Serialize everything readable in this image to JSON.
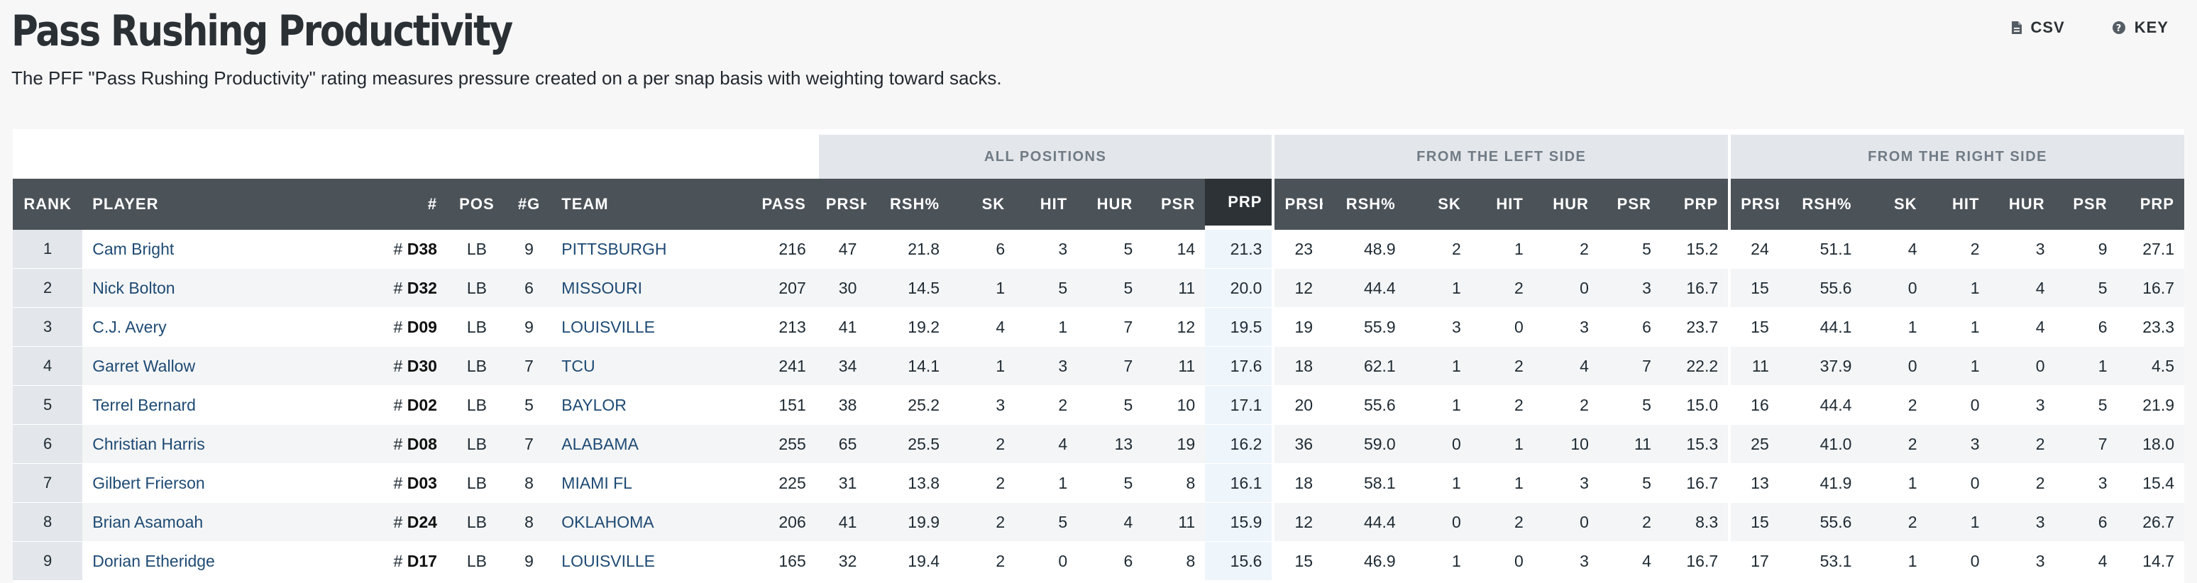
{
  "header": {
    "title": "Pass Rushing Productivity",
    "subtitle": "The PFF \"Pass Rushing Productivity\" rating measures pressure created on a per snap basis with weighting toward sacks.",
    "csv_label": "CSV",
    "key_label": "KEY",
    "csv_icon": "file-icon",
    "key_icon": "help-circle-icon"
  },
  "groups": {
    "all": "ALL POSITIONS",
    "left": "FROM THE LEFT SIDE",
    "right": "FROM THE RIGHT SIDE"
  },
  "columns": {
    "rank": "RANK",
    "player": "PLAYER",
    "jersey": "#",
    "pos": "POS",
    "games": "#G",
    "team": "TEAM",
    "pass": "PASS",
    "prsh": "PRSH",
    "rsh_pct": "RSH%",
    "sk": "SK",
    "hit": "HIT",
    "hur": "HUR",
    "psr": "PSR",
    "prp": "PRP"
  },
  "jersey_prefix": "# ",
  "colors": {
    "header_bg": "#4b5258",
    "sorted_header_bg": "#2d3237",
    "group_bg": "#e3e6ea",
    "link": "#1e4a74",
    "sorted_cell_bg": "#eef5fb"
  },
  "rows": [
    {
      "rank": "1",
      "player": "Cam Bright",
      "jersey": "D38",
      "pos": "LB",
      "games": "9",
      "team": "PITTSBURGH",
      "pass": "216",
      "all": {
        "prsh": "47",
        "rsh": "21.8",
        "sk": "6",
        "hit": "3",
        "hur": "5",
        "psr": "14",
        "prp": "21.3"
      },
      "left": {
        "prsh": "23",
        "rsh": "48.9",
        "sk": "2",
        "hit": "1",
        "hur": "2",
        "psr": "5",
        "prp": "15.2"
      },
      "right": {
        "prsh": "24",
        "rsh": "51.1",
        "sk": "4",
        "hit": "2",
        "hur": "3",
        "psr": "9",
        "prp": "27.1"
      }
    },
    {
      "rank": "2",
      "player": "Nick Bolton",
      "jersey": "D32",
      "pos": "LB",
      "games": "6",
      "team": "MISSOURI",
      "pass": "207",
      "all": {
        "prsh": "30",
        "rsh": "14.5",
        "sk": "1",
        "hit": "5",
        "hur": "5",
        "psr": "11",
        "prp": "20.0"
      },
      "left": {
        "prsh": "12",
        "rsh": "44.4",
        "sk": "1",
        "hit": "2",
        "hur": "0",
        "psr": "3",
        "prp": "16.7"
      },
      "right": {
        "prsh": "15",
        "rsh": "55.6",
        "sk": "0",
        "hit": "1",
        "hur": "4",
        "psr": "5",
        "prp": "16.7"
      }
    },
    {
      "rank": "3",
      "player": "C.J. Avery",
      "jersey": "D09",
      "pos": "LB",
      "games": "9",
      "team": "LOUISVILLE",
      "pass": "213",
      "all": {
        "prsh": "41",
        "rsh": "19.2",
        "sk": "4",
        "hit": "1",
        "hur": "7",
        "psr": "12",
        "prp": "19.5"
      },
      "left": {
        "prsh": "19",
        "rsh": "55.9",
        "sk": "3",
        "hit": "0",
        "hur": "3",
        "psr": "6",
        "prp": "23.7"
      },
      "right": {
        "prsh": "15",
        "rsh": "44.1",
        "sk": "1",
        "hit": "1",
        "hur": "4",
        "psr": "6",
        "prp": "23.3"
      }
    },
    {
      "rank": "4",
      "player": "Garret Wallow",
      "jersey": "D30",
      "pos": "LB",
      "games": "7",
      "team": "TCU",
      "pass": "241",
      "all": {
        "prsh": "34",
        "rsh": "14.1",
        "sk": "1",
        "hit": "3",
        "hur": "7",
        "psr": "11",
        "prp": "17.6"
      },
      "left": {
        "prsh": "18",
        "rsh": "62.1",
        "sk": "1",
        "hit": "2",
        "hur": "4",
        "psr": "7",
        "prp": "22.2"
      },
      "right": {
        "prsh": "11",
        "rsh": "37.9",
        "sk": "0",
        "hit": "1",
        "hur": "0",
        "psr": "1",
        "prp": "4.5"
      }
    },
    {
      "rank": "5",
      "player": "Terrel Bernard",
      "jersey": "D02",
      "pos": "LB",
      "games": "5",
      "team": "BAYLOR",
      "pass": "151",
      "all": {
        "prsh": "38",
        "rsh": "25.2",
        "sk": "3",
        "hit": "2",
        "hur": "5",
        "psr": "10",
        "prp": "17.1"
      },
      "left": {
        "prsh": "20",
        "rsh": "55.6",
        "sk": "1",
        "hit": "2",
        "hur": "2",
        "psr": "5",
        "prp": "15.0"
      },
      "right": {
        "prsh": "16",
        "rsh": "44.4",
        "sk": "2",
        "hit": "0",
        "hur": "3",
        "psr": "5",
        "prp": "21.9"
      }
    },
    {
      "rank": "6",
      "player": "Christian Harris",
      "jersey": "D08",
      "pos": "LB",
      "games": "7",
      "team": "ALABAMA",
      "pass": "255",
      "all": {
        "prsh": "65",
        "rsh": "25.5",
        "sk": "2",
        "hit": "4",
        "hur": "13",
        "psr": "19",
        "prp": "16.2"
      },
      "left": {
        "prsh": "36",
        "rsh": "59.0",
        "sk": "0",
        "hit": "1",
        "hur": "10",
        "psr": "11",
        "prp": "15.3"
      },
      "right": {
        "prsh": "25",
        "rsh": "41.0",
        "sk": "2",
        "hit": "3",
        "hur": "2",
        "psr": "7",
        "prp": "18.0"
      }
    },
    {
      "rank": "7",
      "player": "Gilbert Frierson",
      "jersey": "D03",
      "pos": "LB",
      "games": "8",
      "team": "MIAMI FL",
      "pass": "225",
      "all": {
        "prsh": "31",
        "rsh": "13.8",
        "sk": "2",
        "hit": "1",
        "hur": "5",
        "psr": "8",
        "prp": "16.1"
      },
      "left": {
        "prsh": "18",
        "rsh": "58.1",
        "sk": "1",
        "hit": "1",
        "hur": "3",
        "psr": "5",
        "prp": "16.7"
      },
      "right": {
        "prsh": "13",
        "rsh": "41.9",
        "sk": "1",
        "hit": "0",
        "hur": "2",
        "psr": "3",
        "prp": "15.4"
      }
    },
    {
      "rank": "8",
      "player": "Brian Asamoah",
      "jersey": "D24",
      "pos": "LB",
      "games": "8",
      "team": "OKLAHOMA",
      "pass": "206",
      "all": {
        "prsh": "41",
        "rsh": "19.9",
        "sk": "2",
        "hit": "5",
        "hur": "4",
        "psr": "11",
        "prp": "15.9"
      },
      "left": {
        "prsh": "12",
        "rsh": "44.4",
        "sk": "0",
        "hit": "2",
        "hur": "0",
        "psr": "2",
        "prp": "8.3"
      },
      "right": {
        "prsh": "15",
        "rsh": "55.6",
        "sk": "2",
        "hit": "1",
        "hur": "3",
        "psr": "6",
        "prp": "26.7"
      }
    },
    {
      "rank": "9",
      "player": "Dorian Etheridge",
      "jersey": "D17",
      "pos": "LB",
      "games": "9",
      "team": "LOUISVILLE",
      "pass": "165",
      "all": {
        "prsh": "32",
        "rsh": "19.4",
        "sk": "2",
        "hit": "0",
        "hur": "6",
        "psr": "8",
        "prp": "15.6"
      },
      "left": {
        "prsh": "15",
        "rsh": "46.9",
        "sk": "1",
        "hit": "0",
        "hur": "3",
        "psr": "4",
        "prp": "16.7"
      },
      "right": {
        "prsh": "17",
        "rsh": "53.1",
        "sk": "1",
        "hit": "0",
        "hur": "3",
        "psr": "4",
        "prp": "14.7"
      }
    }
  ]
}
